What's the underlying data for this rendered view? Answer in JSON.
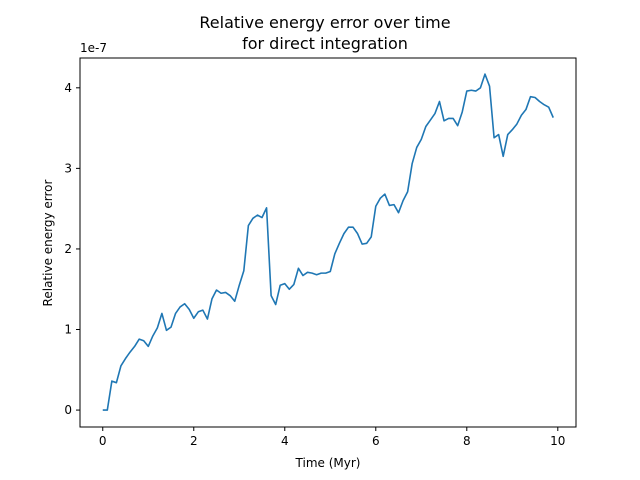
{
  "chart_data": {
    "type": "line",
    "title_line1": "Relative energy error over time",
    "title_line2": "for direct integration",
    "xlabel": "Time (Myr)",
    "ylabel": "Relative energy error",
    "y_offset_text": "1e-7",
    "y_scale": 1e-07,
    "xlim": [
      -0.5,
      10.4
    ],
    "ylim": [
      -2.1e-08,
      4.37e-07
    ],
    "x_ticks": [
      0,
      2,
      4,
      6,
      8,
      10
    ],
    "x_tick_labels": [
      "0",
      "2",
      "4",
      "6",
      "8",
      "10"
    ],
    "y_ticks": [
      0,
      1e-07,
      2e-07,
      3e-07,
      4e-07
    ],
    "y_tick_labels": [
      "0",
      "1",
      "2",
      "3",
      "4"
    ],
    "grid": false,
    "line_color": "#1f77b4",
    "series": [
      {
        "x": [
          0.0,
          0.1,
          0.2,
          0.3,
          0.4,
          0.5,
          0.6,
          0.7,
          0.8,
          0.9,
          1.0,
          1.1,
          1.2,
          1.3,
          1.4,
          1.5,
          1.6,
          1.7,
          1.8,
          1.9,
          2.0,
          2.1,
          2.2,
          2.3,
          2.4,
          2.5,
          2.6,
          2.7,
          2.8,
          2.9,
          3.0,
          3.1,
          3.2,
          3.3,
          3.4,
          3.5,
          3.6,
          3.7,
          3.8,
          3.9,
          4.0,
          4.1,
          4.2,
          4.3,
          4.4,
          4.5,
          4.6,
          4.7,
          4.8,
          4.9,
          5.0,
          5.1,
          5.2,
          5.3,
          5.4,
          5.5,
          5.6,
          5.7,
          5.8,
          5.9,
          6.0,
          6.1,
          6.2,
          6.3,
          6.4,
          6.5,
          6.6,
          6.7,
          6.8,
          6.9,
          7.0,
          7.1,
          7.2,
          7.3,
          7.4,
          7.5,
          7.6,
          7.7,
          7.8,
          7.9,
          8.0,
          8.1,
          8.2,
          8.3,
          8.4,
          8.5,
          8.6,
          8.7,
          8.8,
          8.9,
          9.0,
          9.1,
          9.2,
          9.3,
          9.4,
          9.5,
          9.6,
          9.7,
          9.8,
          9.9
        ],
        "y": [
          0.0,
          0.0,
          3.6e-08,
          3.4e-08,
          5.5e-08,
          6.4e-08,
          7.2e-08,
          7.9e-08,
          8.8e-08,
          8.6e-08,
          7.9e-08,
          9.2e-08,
          1.02e-07,
          1.2e-07,
          9.9e-08,
          1.03e-07,
          1.2e-07,
          1.28e-07,
          1.32e-07,
          1.25e-07,
          1.14e-07,
          1.22e-07,
          1.24e-07,
          1.13e-07,
          1.38e-07,
          1.49e-07,
          1.45e-07,
          1.46e-07,
          1.42e-07,
          1.35e-07,
          1.55e-07,
          1.73e-07,
          2.29e-07,
          2.38e-07,
          2.42e-07,
          2.39e-07,
          2.51e-07,
          1.42e-07,
          1.31e-07,
          1.55e-07,
          1.57e-07,
          1.5e-07,
          1.56e-07,
          1.76e-07,
          1.67e-07,
          1.71e-07,
          1.7e-07,
          1.68e-07,
          1.7e-07,
          1.7e-07,
          1.72e-07,
          1.94e-07,
          2.07e-07,
          2.19e-07,
          2.27e-07,
          2.27e-07,
          2.19e-07,
          2.06e-07,
          2.07e-07,
          2.15e-07,
          2.53e-07,
          2.63e-07,
          2.68e-07,
          2.54e-07,
          2.55e-07,
          2.45e-07,
          2.6e-07,
          2.71e-07,
          3.06e-07,
          3.26e-07,
          3.36e-07,
          3.52e-07,
          3.6e-07,
          3.68e-07,
          3.83e-07,
          3.59e-07,
          3.62e-07,
          3.62e-07,
          3.53e-07,
          3.7e-07,
          3.96e-07,
          3.97e-07,
          3.96e-07,
          4e-07,
          4.17e-07,
          4.02e-07,
          3.38e-07,
          3.42e-07,
          3.15e-07,
          3.42e-07,
          3.48e-07,
          3.55e-07,
          3.66e-07,
          3.73e-07,
          3.89e-07,
          3.88e-07,
          3.83e-07,
          3.79e-07,
          3.76e-07,
          3.63e-07
        ]
      }
    ]
  }
}
